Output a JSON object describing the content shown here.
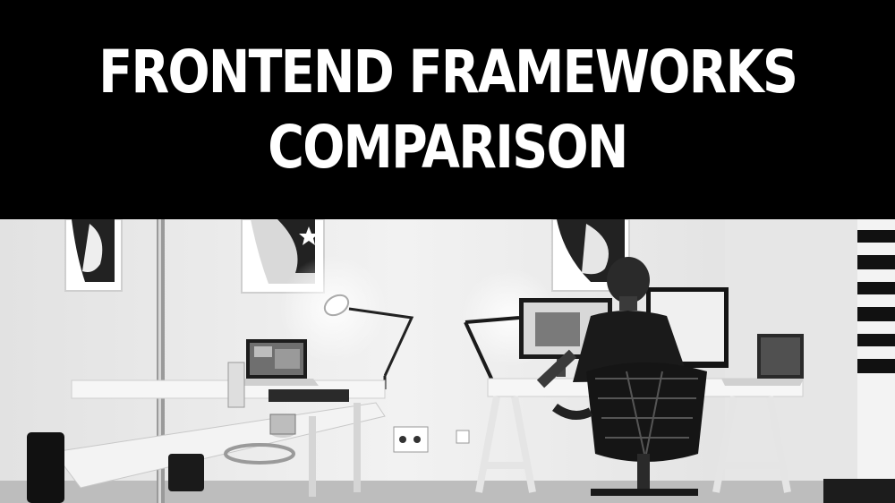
{
  "banner": {
    "title_line_1": "FRONTEND FRAMEWORKS",
    "title_line_2": "COMPARISON"
  },
  "photo": {
    "subject": "office-workspace-photo",
    "palette": {
      "wall": "#ececec",
      "shadow": "#cfcfcf",
      "desk": "#f4f4f4",
      "dark": "#1a1a1a"
    }
  }
}
